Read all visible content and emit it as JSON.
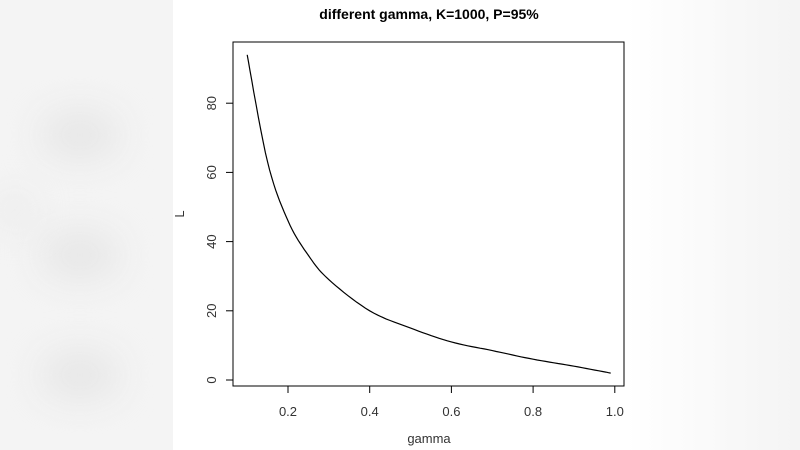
{
  "chart_data": {
    "type": "line",
    "title": "different gamma, K=1000, P=95%",
    "xlabel": "gamma",
    "ylabel": "L",
    "xlim": [
      0.07,
      1.02
    ],
    "ylim": [
      -2,
      97
    ],
    "x_ticks": [
      "0.2",
      "0.4",
      "0.6",
      "0.8",
      "1.0"
    ],
    "y_ticks": [
      "0",
      "20",
      "40",
      "60",
      "80"
    ],
    "grid": false,
    "legend": null,
    "series": [
      {
        "name": "L",
        "color": "#000000",
        "x": [
          0.1,
          0.15,
          0.2,
          0.25,
          0.3,
          0.4,
          0.5,
          0.6,
          0.7,
          0.8,
          0.9,
          0.99
        ],
        "y": [
          94,
          63,
          46,
          36,
          29,
          20,
          15,
          11,
          8.5,
          6,
          4,
          2
        ]
      }
    ]
  }
}
